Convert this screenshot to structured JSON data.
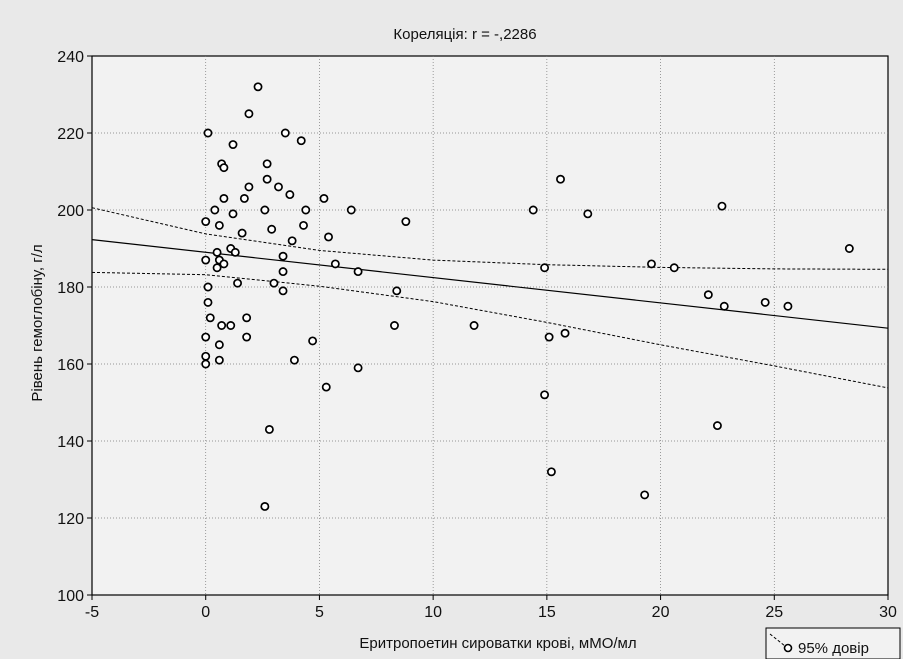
{
  "chart_data": {
    "type": "scatter",
    "title": "Кореляція: r =  -,2286",
    "xlabel": "Еритропоетин сироватки крові, мМО/мл",
    "ylabel": "Рівень гемоглобіну, г/л",
    "xlim": [
      -5,
      30
    ],
    "ylim": [
      100,
      240
    ],
    "xticks": [
      -5,
      0,
      5,
      10,
      15,
      20,
      25,
      30
    ],
    "yticks": [
      100,
      120,
      140,
      160,
      180,
      200,
      220,
      240
    ],
    "grid": true,
    "legend": {
      "label": "95% довір",
      "placement": "bottom-right"
    },
    "regression": {
      "x": [
        -5,
        30
      ],
      "y": [
        192.3,
        169.3
      ]
    },
    "confidence_band": {
      "upper": {
        "x": [
          -5,
          0,
          5,
          10,
          15,
          20,
          25,
          30
        ],
        "y": [
          200.6,
          193.8,
          189.5,
          187.0,
          185.8,
          185.1,
          184.7,
          184.6
        ]
      },
      "lower": {
        "x": [
          -5,
          0,
          5,
          10,
          15,
          20,
          25,
          30
        ],
        "y": [
          183.8,
          183.2,
          180.2,
          176.2,
          170.8,
          165.0,
          159.5,
          153.8
        ]
      }
    },
    "series": [
      {
        "points": [
          [
            0.1,
            220
          ],
          [
            0.0,
            197
          ],
          [
            0.0,
            187
          ],
          [
            0.1,
            180
          ],
          [
            0.1,
            176
          ],
          [
            0.2,
            172
          ],
          [
            0.0,
            167
          ],
          [
            0.0,
            162
          ],
          [
            0.0,
            160
          ],
          [
            0.4,
            200
          ],
          [
            0.5,
            185
          ],
          [
            0.5,
            189
          ],
          [
            0.6,
            187
          ],
          [
            0.6,
            165
          ],
          [
            0.6,
            161
          ],
          [
            0.6,
            196
          ],
          [
            0.7,
            212
          ],
          [
            0.8,
            211
          ],
          [
            0.8,
            203
          ],
          [
            0.8,
            186
          ],
          [
            0.7,
            170
          ],
          [
            1.1,
            170
          ],
          [
            1.2,
            217
          ],
          [
            1.2,
            199
          ],
          [
            1.1,
            190
          ],
          [
            1.3,
            189
          ],
          [
            1.4,
            181
          ],
          [
            1.6,
            194
          ],
          [
            1.7,
            203
          ],
          [
            1.8,
            167
          ],
          [
            1.8,
            172
          ],
          [
            1.9,
            206
          ],
          [
            1.9,
            225
          ],
          [
            2.3,
            232
          ],
          [
            2.7,
            212
          ],
          [
            2.7,
            208
          ],
          [
            2.6,
            200
          ],
          [
            2.9,
            195
          ],
          [
            2.6,
            123
          ],
          [
            2.8,
            143
          ],
          [
            3.0,
            181
          ],
          [
            3.2,
            206
          ],
          [
            3.4,
            188
          ],
          [
            3.4,
            184
          ],
          [
            3.4,
            179
          ],
          [
            3.5,
            220
          ],
          [
            3.7,
            204
          ],
          [
            3.8,
            192
          ],
          [
            3.9,
            161
          ],
          [
            4.2,
            218
          ],
          [
            4.4,
            200
          ],
          [
            4.3,
            196
          ],
          [
            4.7,
            166
          ],
          [
            5.2,
            203
          ],
          [
            5.4,
            193
          ],
          [
            5.7,
            186
          ],
          [
            5.3,
            154
          ],
          [
            6.4,
            200
          ],
          [
            6.7,
            184
          ],
          [
            6.7,
            159
          ],
          [
            8.3,
            170
          ],
          [
            8.4,
            179
          ],
          [
            8.8,
            197
          ],
          [
            11.8,
            170
          ],
          [
            14.4,
            200
          ],
          [
            14.9,
            185
          ],
          [
            14.9,
            152
          ],
          [
            15.1,
            167
          ],
          [
            15.2,
            132
          ],
          [
            15.6,
            208
          ],
          [
            15.8,
            168
          ],
          [
            16.8,
            199
          ],
          [
            19.3,
            126
          ],
          [
            19.6,
            186
          ],
          [
            20.6,
            185
          ],
          [
            22.1,
            178
          ],
          [
            22.5,
            144
          ],
          [
            22.7,
            201
          ],
          [
            22.8,
            175
          ],
          [
            24.6,
            176
          ],
          [
            25.6,
            175
          ],
          [
            28.3,
            190
          ]
        ]
      }
    ]
  }
}
